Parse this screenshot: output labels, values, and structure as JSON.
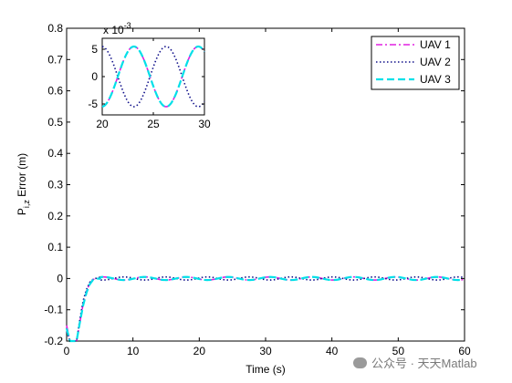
{
  "chart_data": {
    "type": "line",
    "xlabel": "Time (s)",
    "ylabel_main": "P",
    "ylabel_sub": "i,z",
    "ylabel_rest": " Error (m)",
    "xlim": [
      0,
      60
    ],
    "ylim": [
      -0.2,
      0.8
    ],
    "x_ticks": [
      "0",
      "10",
      "20",
      "30",
      "40",
      "50",
      "60"
    ],
    "y_ticks": [
      "-0.2",
      "-0.1",
      "0",
      "0.1",
      "0.2",
      "0.3",
      "0.4",
      "0.5",
      "0.6",
      "0.7",
      "0.8"
    ],
    "grid": false,
    "legend_position": "top-right",
    "series": [
      {
        "name": "UAV 1",
        "color": "#e020e0",
        "style": "dash-dot",
        "x": [
          0,
          0.5,
          1,
          1.5,
          2,
          2.5,
          3,
          3.5,
          4,
          4.5,
          5,
          10,
          15,
          20,
          25,
          30,
          35,
          40,
          45,
          50,
          55,
          60
        ],
        "y": [
          -0.15,
          -0.2,
          -0.2,
          -0.2,
          -0.14,
          -0.08,
          -0.04,
          -0.015,
          -0.003,
          0.0,
          0.0,
          -0.004,
          0.0055,
          -0.005,
          0.004,
          -0.005,
          0.005,
          -0.004,
          0.005,
          -0.004,
          0.004,
          -0.003
        ]
      },
      {
        "name": "UAV 2",
        "color": "#10108a",
        "style": "dotted",
        "x": [
          0,
          0.5,
          1,
          1.5,
          2,
          2.5,
          3,
          3.5,
          4,
          4.5,
          5,
          10,
          15,
          20,
          25,
          30,
          35,
          40,
          45,
          50,
          55,
          60
        ],
        "y": [
          -0.17,
          -0.2,
          -0.2,
          -0.2,
          -0.13,
          -0.07,
          -0.035,
          -0.012,
          -0.002,
          0.001,
          0.004,
          0.005,
          -0.005,
          0.005,
          -0.006,
          0.005,
          -0.005,
          0.005,
          -0.005,
          0.005,
          -0.004,
          0.004
        ]
      },
      {
        "name": "UAV 3",
        "color": "#00e0e8",
        "style": "dashed",
        "x": [
          0,
          0.5,
          1,
          1.5,
          2,
          2.5,
          3,
          3.5,
          4,
          4.5,
          5,
          10,
          15,
          20,
          25,
          30,
          35,
          40,
          45,
          50,
          55,
          60
        ],
        "y": [
          -0.16,
          -0.2,
          -0.2,
          -0.2,
          -0.14,
          -0.085,
          -0.045,
          -0.018,
          -0.004,
          0.0,
          -0.001,
          -0.005,
          0.0055,
          -0.005,
          0.0045,
          -0.005,
          0.005,
          -0.004,
          0.005,
          -0.0045,
          0.004,
          -0.0035
        ]
      }
    ],
    "inset": {
      "xlim": [
        20,
        30
      ],
      "ylim": [
        -7,
        7
      ],
      "x_ticks": [
        "20",
        "25",
        "30"
      ],
      "y_ticks": [
        "5",
        "0",
        "-5"
      ],
      "exponent_base": "x 10",
      "exponent_power": "-3",
      "period": 6.3,
      "amplitude": 5.5,
      "phases": {
        "UAV 1": 1,
        "UAV 2": -1,
        "UAV 3": 1
      }
    }
  },
  "watermark": "公众号 · 天天Matlab"
}
